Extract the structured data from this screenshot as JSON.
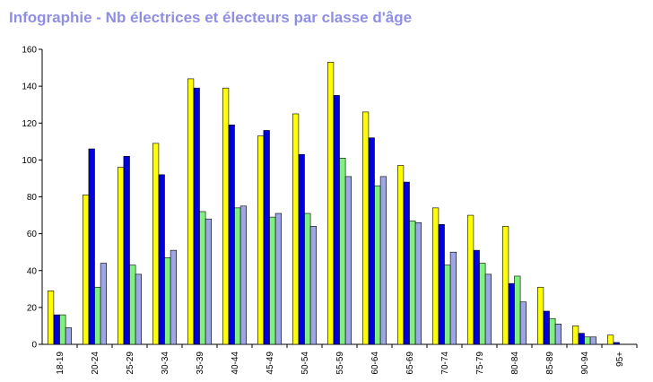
{
  "chart_data": {
    "type": "bar",
    "title": "Infographie - Nb électrices et électeurs par classe d'âge",
    "xlabel": "",
    "ylabel": "",
    "ylim": [
      0,
      160
    ],
    "yticks": [
      0,
      20,
      40,
      60,
      80,
      100,
      120,
      140,
      160
    ],
    "grid": false,
    "legend": "none",
    "categories": [
      "18-19",
      "20-24",
      "25-29",
      "30-34",
      "35-39",
      "40-44",
      "45-49",
      "50-54",
      "55-59",
      "60-64",
      "65-69",
      "70-74",
      "75-79",
      "80-84",
      "85-89",
      "90-94",
      "95+"
    ],
    "series": [
      {
        "color": "#ffff00",
        "values": [
          29,
          81,
          96,
          109,
          144,
          139,
          113,
          125,
          153,
          126,
          97,
          74,
          70,
          64,
          31,
          10,
          5
        ]
      },
      {
        "color": "#0000dd",
        "values": [
          16,
          106,
          102,
          92,
          139,
          119,
          116,
          103,
          135,
          112,
          88,
          65,
          51,
          33,
          18,
          6,
          1
        ]
      },
      {
        "color": "#80f080",
        "values": [
          16,
          31,
          43,
          47,
          72,
          74,
          69,
          71,
          101,
          86,
          67,
          43,
          44,
          37,
          14,
          4,
          0
        ]
      },
      {
        "color": "#9ea6e8",
        "values": [
          9,
          44,
          38,
          51,
          68,
          75,
          71,
          64,
          91,
          91,
          66,
          50,
          38,
          23,
          11,
          4,
          0
        ]
      }
    ]
  }
}
